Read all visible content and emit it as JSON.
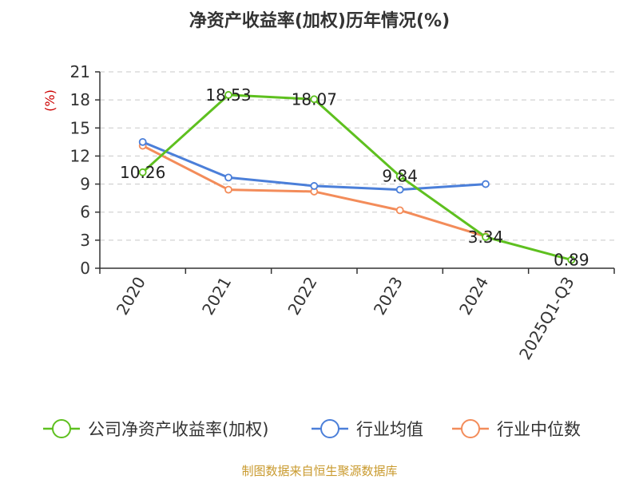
{
  "chart_data": {
    "type": "line",
    "title": "净资产收益率(加权)历年情况(%)",
    "ylabel": "(%)",
    "xlabel": "",
    "categories": [
      "2020",
      "2021",
      "2022",
      "2023",
      "2024",
      "2025Q1-Q3"
    ],
    "ylim": [
      0,
      21
    ],
    "yticks": [
      0,
      3,
      6,
      9,
      12,
      15,
      18,
      21
    ],
    "grid": true,
    "legend_position": "bottom",
    "series": [
      {
        "name": "公司净资产收益率(加权)",
        "color": "#5ec01f",
        "values": [
          10.26,
          18.53,
          18.07,
          9.84,
          3.34,
          0.89
        ],
        "labels": [
          "10.26",
          "18.53",
          "18.07",
          "9.84",
          "3.34",
          "0.89"
        ]
      },
      {
        "name": "行业均值",
        "color": "#4b7fd9",
        "values": [
          13.5,
          9.7,
          8.8,
          8.4,
          9.0,
          null
        ]
      },
      {
        "name": "行业中位数",
        "color": "#f38c5a",
        "values": [
          13.1,
          8.4,
          8.2,
          6.2,
          3.4,
          null
        ]
      }
    ]
  },
  "footer": {
    "source": "制图数据来自恒生聚源数据库",
    "color": "#c99a2e"
  },
  "ylabel_color": "#cc0000"
}
